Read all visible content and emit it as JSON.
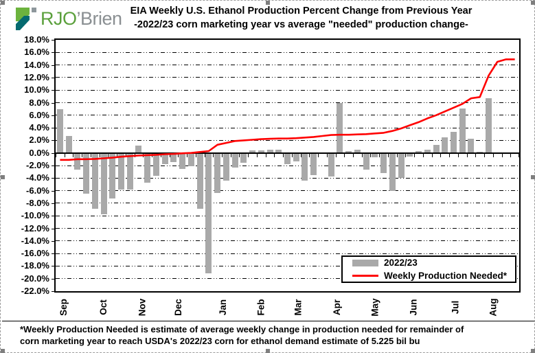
{
  "logo": {
    "green_text": "RJO",
    "grey_text": "’Brien"
  },
  "title": {
    "line1": "EIA Weekly U.S. Ethanol Production Percent Change from Previous Year",
    "line2": "-2022/23 corn marketing year vs average \"needed\" production change-"
  },
  "legend": {
    "bar_label": "2022/23",
    "line_label": "Weekly Production Needed*"
  },
  "footnote": {
    "line1": "*Weekly Production Needed is estimate of average weekly change in production needed for remainder of",
    "line2": "corn marketing year to reach USDA's 2022/23 corn for ethanol demand estimate of 5.225 bil bu"
  },
  "colors": {
    "bar": "#a9a9a9",
    "line": "#ff0000",
    "logo_green": "#6cb33e",
    "logo_teal": "#046a70",
    "logo_grey_square": "#8e979c"
  },
  "chart_data": {
    "type": "bar+line",
    "title": "EIA Weekly U.S. Ethanol Production Percent Change from Previous Year",
    "subtitle": "-2022/23 corn marketing year vs average \"needed\" production change-",
    "ylim": [
      -22,
      18
    ],
    "ytick_step": 2,
    "ytick_format": "0.0%",
    "grid": "horizontal dash-dot",
    "legend_position": "inside bottom-right",
    "weeks": 53,
    "month_labels": [
      "Sep",
      "Oct",
      "Nov",
      "Dec",
      "Jan",
      "Feb",
      "Mar",
      "Apr",
      "May",
      "Jun",
      "Jul",
      "Aug"
    ],
    "month_positions": [
      0.4,
      4.9,
      9.4,
      13.5,
      18.6,
      23.0,
      27.2,
      31.7,
      36.0,
      40.4,
      45.2,
      49.5
    ],
    "series": [
      {
        "name": "2022/23",
        "type": "bar",
        "color": "#a9a9a9",
        "values": [
          7.0,
          2.7,
          -2.7,
          -6.5,
          -8.9,
          -9.8,
          -7.3,
          -5.8,
          -5.8,
          1.2,
          -4.7,
          -3.6,
          -1.8,
          -1.5,
          -2.5,
          -2.1,
          -8.9,
          -19.2,
          -6.4,
          -4.4,
          -2.3,
          -1.6,
          0.4,
          0.4,
          0.5,
          0.5,
          -1.8,
          -1.4,
          -4.4,
          -3.5,
          0.0,
          -3.7,
          8.0,
          0.3,
          0.5,
          -2.7,
          -0.7,
          -3.2,
          -6.0,
          -4.0,
          -0.6,
          0.3,
          0.5,
          1.3,
          2.5,
          3.4,
          7.1,
          2.3,
          0.2,
          8.7,
          null,
          null,
          null
        ]
      },
      {
        "name": "Weekly Production Needed*",
        "type": "line",
        "color": "#ff0000",
        "values": [
          -1.1,
          -1.1,
          -1.0,
          -1.0,
          -0.95,
          -0.85,
          -0.75,
          -0.6,
          -0.5,
          -0.4,
          -0.35,
          -0.3,
          -0.2,
          -0.15,
          -0.05,
          0.0,
          0.15,
          0.3,
          1.3,
          1.6,
          1.9,
          2.0,
          2.1,
          2.2,
          2.25,
          2.3,
          2.3,
          2.35,
          2.45,
          2.55,
          2.7,
          2.85,
          2.9,
          2.9,
          2.95,
          3.0,
          3.1,
          3.2,
          3.5,
          3.9,
          4.4,
          4.9,
          5.5,
          6.0,
          6.6,
          7.2,
          7.8,
          8.7,
          8.9,
          12.3,
          14.5,
          14.9,
          14.9
        ]
      }
    ]
  }
}
